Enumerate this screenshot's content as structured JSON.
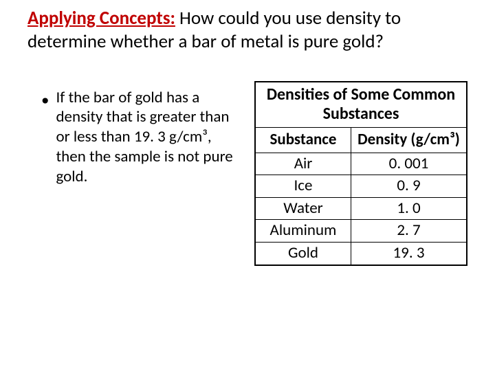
{
  "heading": {
    "label": "Applying Concepts:",
    "text": " How could you use density to determine whether a bar of metal is pure gold?"
  },
  "bullet": {
    "text": "If the bar of gold has a density that is greater than or less than 19. 3 g/cm³, then the sample is not pure gold."
  },
  "table": {
    "title": "Densities of Some Common Substances",
    "columns": [
      "Substance",
      "Density (g/cm³)"
    ],
    "rows": [
      [
        "Air",
        "0. 001"
      ],
      [
        "Ice",
        "0. 9"
      ],
      [
        "Water",
        "1. 0"
      ],
      [
        "Aluminum",
        "2. 7"
      ],
      [
        "Gold",
        "19. 3"
      ]
    ]
  },
  "colors": {
    "accent": "#c00000",
    "text": "#000000",
    "border": "#000000",
    "background": "#ffffff"
  }
}
